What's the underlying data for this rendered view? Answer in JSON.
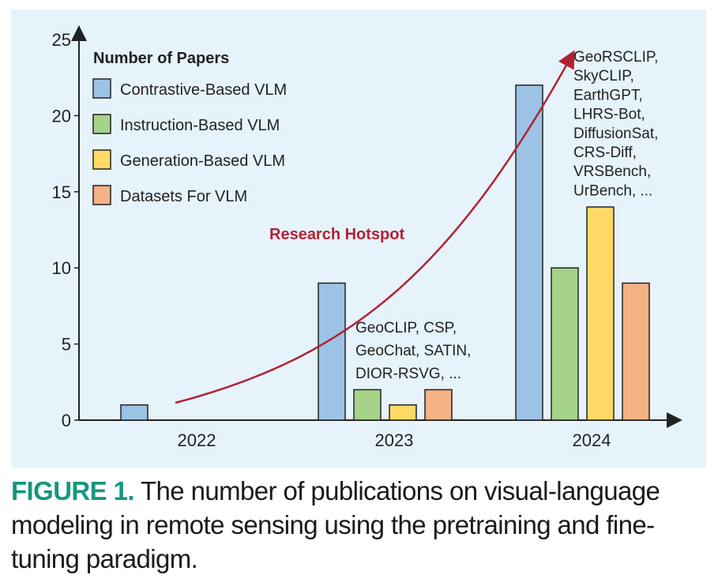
{
  "chart_data": {
    "type": "bar",
    "categories": [
      "2022",
      "2023",
      "2024"
    ],
    "series": [
      {
        "name": "Contrastive-Based VLM",
        "values": [
          1,
          9,
          22
        ],
        "color": "#9cc3e5"
      },
      {
        "name": "Instruction-Based VLM",
        "values": [
          0,
          2,
          10
        ],
        "color": "#a4d389"
      },
      {
        "name": "Generation-Based VLM",
        "values": [
          0,
          1,
          14
        ],
        "color": "#ffd966"
      },
      {
        "name": "Datasets For VLM",
        "values": [
          0,
          2,
          9
        ],
        "color": "#f4b183"
      }
    ],
    "ylim": [
      0,
      25
    ],
    "yticks": [
      0,
      5,
      10,
      15,
      20,
      25
    ],
    "legend_title": "Number of Papers",
    "legend_position": "top-left",
    "grid": false,
    "annotations": {
      "trend_label": "Research Hotspot",
      "trend_color": "#b22234",
      "examples_2023": [
        "GeoCLIP, CSP,",
        "GeoChat, SATIN,",
        "DIOR-RSVG, ..."
      ],
      "examples_2024": [
        "GeoRSCLIP,",
        "SkyCLIP,",
        "EarthGPT,",
        "LHRS-Bot,",
        "DiffusionSat,",
        "CRS-Diff,",
        "VRSBench,",
        "UrBench, ..."
      ]
    }
  },
  "caption": {
    "label": "FIGURE 1.",
    "text": "The number of publications on visual-language modeling in remote sensing using the pretraining and fine-tuning paradigm."
  },
  "colors": {
    "background_panel": "#e6f3fb",
    "caption_label": "#16967f"
  }
}
